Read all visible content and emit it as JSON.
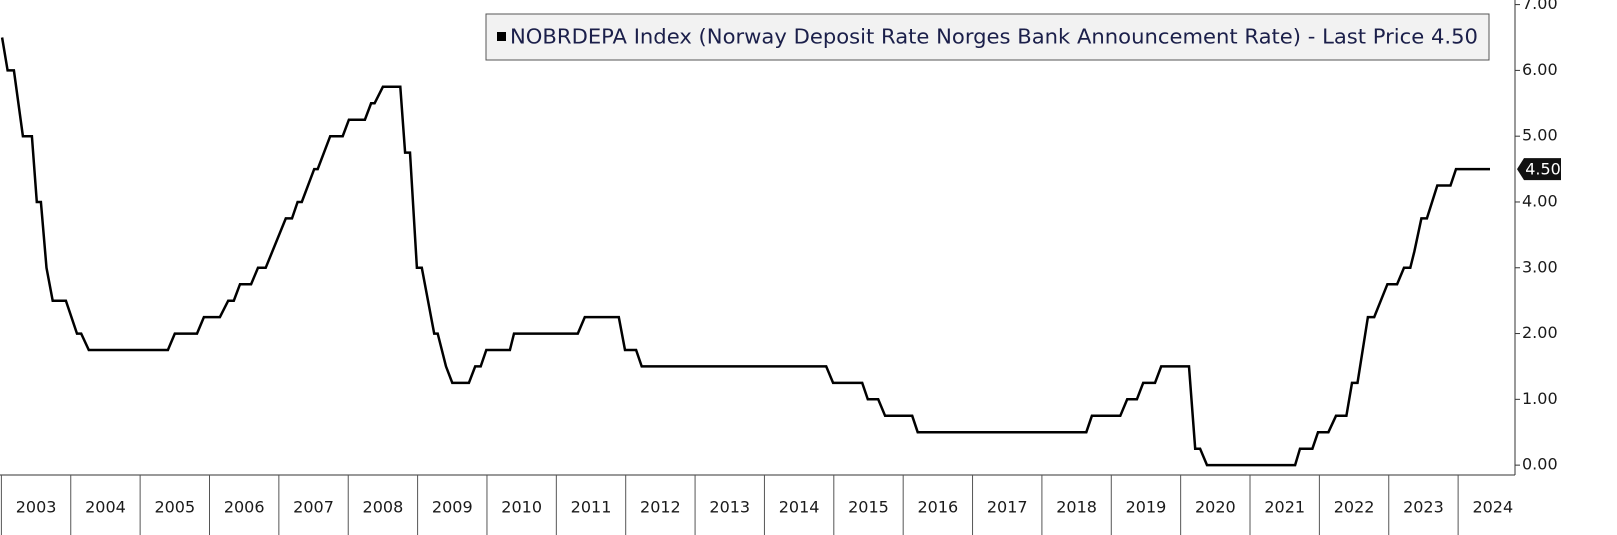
{
  "chart_data": {
    "type": "line",
    "series": [
      {
        "name": "NOBRDEPA Index (Norway Deposit Rate Norges Bank Announcement Rate) - Last Price 4.50",
        "color": "#000000",
        "values": [
          6.5,
          6.0,
          6.0,
          5.0,
          5.0,
          4.0,
          4.0,
          3.0,
          2.5,
          2.5,
          2.0,
          2.0,
          1.75,
          1.75,
          2.0,
          2.0,
          2.25,
          2.25,
          2.5,
          2.5,
          2.75,
          2.75,
          3.0,
          3.0,
          3.75,
          3.75,
          4.0,
          4.0,
          4.5,
          4.5,
          5.0,
          5.0,
          5.25,
          5.25,
          5.5,
          5.5,
          5.75,
          5.75,
          4.75,
          4.75,
          3.0,
          3.0,
          2.0,
          2.0,
          1.5,
          1.25,
          1.25,
          1.5,
          1.5,
          1.75,
          1.75,
          2.0,
          2.0,
          2.25,
          2.25,
          1.75,
          1.75,
          1.5,
          1.5,
          1.25,
          1.25,
          1.0,
          1.0,
          0.75,
          0.75,
          0.5,
          0.5,
          0.75,
          0.75,
          1.0,
          1.0,
          1.25,
          1.25,
          1.5,
          1.5,
          0.25,
          0.25,
          0,
          0,
          0.25,
          0.25,
          0.5,
          0.5,
          0.75,
          0.75,
          1.25,
          1.25,
          2.25,
          2.25,
          2.75,
          2.75,
          3.0,
          3.0,
          3.25,
          3.75,
          3.75,
          4.25,
          4.25,
          4.5,
          4.5
        ]
      }
    ],
    "x": [
      2003.01,
      2003.09,
      2003.18,
      2003.31,
      2003.44,
      2003.51,
      2003.57,
      2003.65,
      2003.74,
      2003.93,
      2004.09,
      2004.15,
      2004.26,
      2005.4,
      2005.5,
      2005.82,
      2005.92,
      2006.15,
      2006.27,
      2006.35,
      2006.44,
      2006.6,
      2006.7,
      2006.81,
      2007.1,
      2007.19,
      2007.27,
      2007.33,
      2007.51,
      2007.56,
      2007.74,
      2007.92,
      2008.01,
      2008.24,
      2008.33,
      2008.38,
      2008.5,
      2008.75,
      2008.82,
      2008.89,
      2008.99,
      2009.06,
      2009.24,
      2009.29,
      2009.41,
      2009.5,
      2009.74,
      2009.83,
      2009.91,
      2009.99,
      2010.33,
      2010.39,
      2011.31,
      2011.41,
      2011.9,
      2011.99,
      2012.15,
      2012.23,
      2014.89,
      2014.99,
      2015.41,
      2015.49,
      2015.64,
      2015.74,
      2016.13,
      2016.21,
      2018.64,
      2018.72,
      2019.13,
      2019.23,
      2019.37,
      2019.46,
      2019.63,
      2019.72,
      2020.12,
      2020.21,
      2020.28,
      2020.38,
      2021.65,
      2021.72,
      2021.9,
      2021.98,
      2022.13,
      2022.24,
      2022.39,
      2022.47,
      2022.55,
      2022.7,
      2022.79,
      2022.98,
      2023.12,
      2023.22,
      2023.31,
      2023.37,
      2023.47,
      2023.55,
      2023.7,
      2023.89,
      2023.97,
      2024.46
    ],
    "xlim": [
      2002.98,
      2024.82
    ],
    "xticks": [
      {
        "value": 2003.5,
        "label": "2003"
      },
      {
        "value": 2004.5,
        "label": "2004"
      },
      {
        "value": 2005.5,
        "label": "2005"
      },
      {
        "value": 2006.5,
        "label": "2006"
      },
      {
        "value": 2007.5,
        "label": "2007"
      },
      {
        "value": 2008.5,
        "label": "2008"
      },
      {
        "value": 2009.5,
        "label": "2009"
      },
      {
        "value": 2010.5,
        "label": "2010"
      },
      {
        "value": 2011.5,
        "label": "2011"
      },
      {
        "value": 2012.5,
        "label": "2012"
      },
      {
        "value": 2013.5,
        "label": "2013"
      },
      {
        "value": 2014.5,
        "label": "2014"
      },
      {
        "value": 2015.5,
        "label": "2015"
      },
      {
        "value": 2016.5,
        "label": "2016"
      },
      {
        "value": 2017.5,
        "label": "2017"
      },
      {
        "value": 2018.5,
        "label": "2018"
      },
      {
        "value": 2019.5,
        "label": "2019"
      },
      {
        "value": 2020.5,
        "label": "2020"
      },
      {
        "value": 2021.5,
        "label": "2021"
      },
      {
        "value": 2022.5,
        "label": "2022"
      },
      {
        "value": 2023.5,
        "label": "2023"
      },
      {
        "value": 2024.5,
        "label": "2024"
      }
    ],
    "ylim": [
      -0.15,
      7.07
    ],
    "yticks": [
      {
        "value": 0,
        "label": "0.00"
      },
      {
        "value": 1,
        "label": "1.00"
      },
      {
        "value": 2,
        "label": "2.00"
      },
      {
        "value": 3,
        "label": "3.00"
      },
      {
        "value": 4,
        "label": "4.00"
      },
      {
        "value": 5,
        "label": "5.00"
      },
      {
        "value": 6,
        "label": "6.00"
      },
      {
        "value": 7,
        "label": "7.00"
      }
    ],
    "last_value": {
      "value": 4.5,
      "label": "4.50"
    }
  }
}
